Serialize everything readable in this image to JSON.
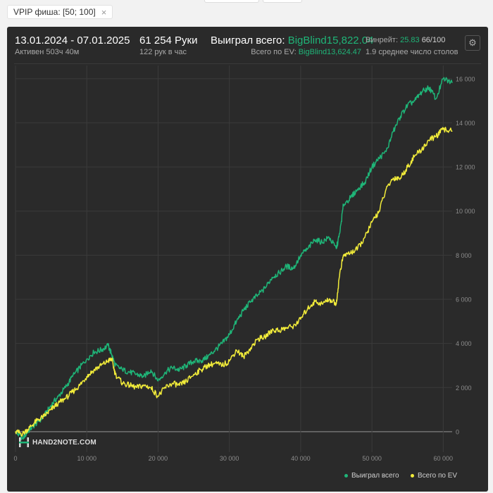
{
  "filter": {
    "label": "VPIP фиша: [50; 100]",
    "close": "×"
  },
  "header": {
    "period": "13.01.2024 - 07.01.2025",
    "active": "Активен 503ч 40м",
    "hands": "61 254 Руки",
    "hands_per_hour": "122 рук в час",
    "won_label": "Выиграл всего:",
    "won_value": "BigBlind15,822.04",
    "ev_label": "Всего по EV:",
    "ev_value": "BigBlind13,624.47",
    "winrate_label": "Винрейт:",
    "winrate_value": "25.83",
    "winrate_unit": "66/100",
    "tables": "1.9 среднее число столов"
  },
  "logo": {
    "text": "HAND2NOTE.COM",
    "icon": "h2n-logo-icon"
  },
  "colors": {
    "won": "#1fb578",
    "ev": "#f2ec3a",
    "grid": "#3b3b3b",
    "zero": "#8a8a8a",
    "axis_text": "#8c8c8c"
  },
  "chart_data": {
    "type": "line",
    "x_ticks": [
      0,
      10000,
      20000,
      30000,
      40000,
      50000,
      60000
    ],
    "x_tick_labels": [
      "0",
      "10 000",
      "20 000",
      "30 000",
      "40 000",
      "50 000",
      "60 000"
    ],
    "y_ticks": [
      0,
      2000,
      4000,
      6000,
      8000,
      10000,
      12000,
      14000,
      16000
    ],
    "y_tick_labels": [
      "0",
      "2 000",
      "4 000",
      "6 000",
      "8 000",
      "10 000",
      "12 000",
      "14 000",
      "16 000"
    ],
    "xlim": [
      0,
      61254
    ],
    "ylim": [
      -800,
      16600
    ],
    "grid": true,
    "legend_position": "bottom-right",
    "series": [
      {
        "name": "Выиграл всего",
        "color": "#1fb578",
        "x": [
          0,
          1000,
          2000,
          3000,
          4000,
          5000,
          6000,
          7000,
          8000,
          9000,
          10000,
          11000,
          12000,
          13000,
          13500,
          14000,
          15000,
          16000,
          17000,
          18000,
          19000,
          20000,
          21000,
          22000,
          23000,
          24000,
          25000,
          26000,
          27000,
          28000,
          29000,
          30000,
          31000,
          32000,
          33000,
          34000,
          35000,
          36000,
          37000,
          38000,
          39000,
          40000,
          41000,
          42000,
          43000,
          44000,
          45000,
          45500,
          46000,
          47000,
          48000,
          49000,
          50000,
          51000,
          52000,
          53000,
          54000,
          55000,
          56000,
          57000,
          58000,
          59000,
          60000,
          61254
        ],
        "values": [
          0,
          -300,
          100,
          400,
          700,
          1200,
          1600,
          2000,
          2500,
          2900,
          3300,
          3600,
          3700,
          3900,
          3500,
          3000,
          2800,
          2700,
          2600,
          2500,
          2800,
          2300,
          2700,
          2900,
          2800,
          3000,
          3200,
          3200,
          3400,
          3700,
          4000,
          4400,
          5000,
          5500,
          5900,
          6200,
          6500,
          7000,
          7200,
          7500,
          7400,
          8000,
          8300,
          8700,
          8600,
          8800,
          8300,
          9000,
          10300,
          10600,
          11000,
          11300,
          12000,
          12400,
          12700,
          13600,
          14300,
          14800,
          15000,
          15400,
          15600,
          15100,
          16000,
          15822
        ]
      },
      {
        "name": "Всего по EV",
        "color": "#f2ec3a",
        "x": [
          0,
          1000,
          2000,
          3000,
          4000,
          5000,
          6000,
          7000,
          8000,
          9000,
          10000,
          11000,
          12000,
          13000,
          13500,
          14000,
          15000,
          16000,
          17000,
          18000,
          19000,
          20000,
          21000,
          22000,
          23000,
          24000,
          25000,
          26000,
          27000,
          28000,
          29000,
          30000,
          31000,
          32000,
          33000,
          34000,
          35000,
          36000,
          37000,
          38000,
          39000,
          40000,
          41000,
          42000,
          43000,
          44000,
          45000,
          45500,
          46000,
          47000,
          48000,
          49000,
          50000,
          51000,
          52000,
          53000,
          54000,
          55000,
          56000,
          57000,
          58000,
          59000,
          60000,
          61254
        ],
        "values": [
          0,
          -100,
          200,
          500,
          700,
          1000,
          1300,
          1500,
          1800,
          2100,
          2500,
          2800,
          3000,
          3200,
          3300,
          2600,
          2200,
          2100,
          2000,
          2100,
          2000,
          1600,
          2000,
          2200,
          2100,
          2300,
          2600,
          2800,
          3000,
          3100,
          3000,
          3200,
          3700,
          3400,
          3800,
          4200,
          4300,
          4600,
          4600,
          4700,
          4800,
          5100,
          5600,
          5900,
          5800,
          6000,
          5800,
          7200,
          8000,
          8100,
          8300,
          8800,
          9500,
          10000,
          11000,
          11500,
          11500,
          12000,
          12500,
          12800,
          13200,
          13400,
          13700,
          13624
        ]
      }
    ]
  }
}
